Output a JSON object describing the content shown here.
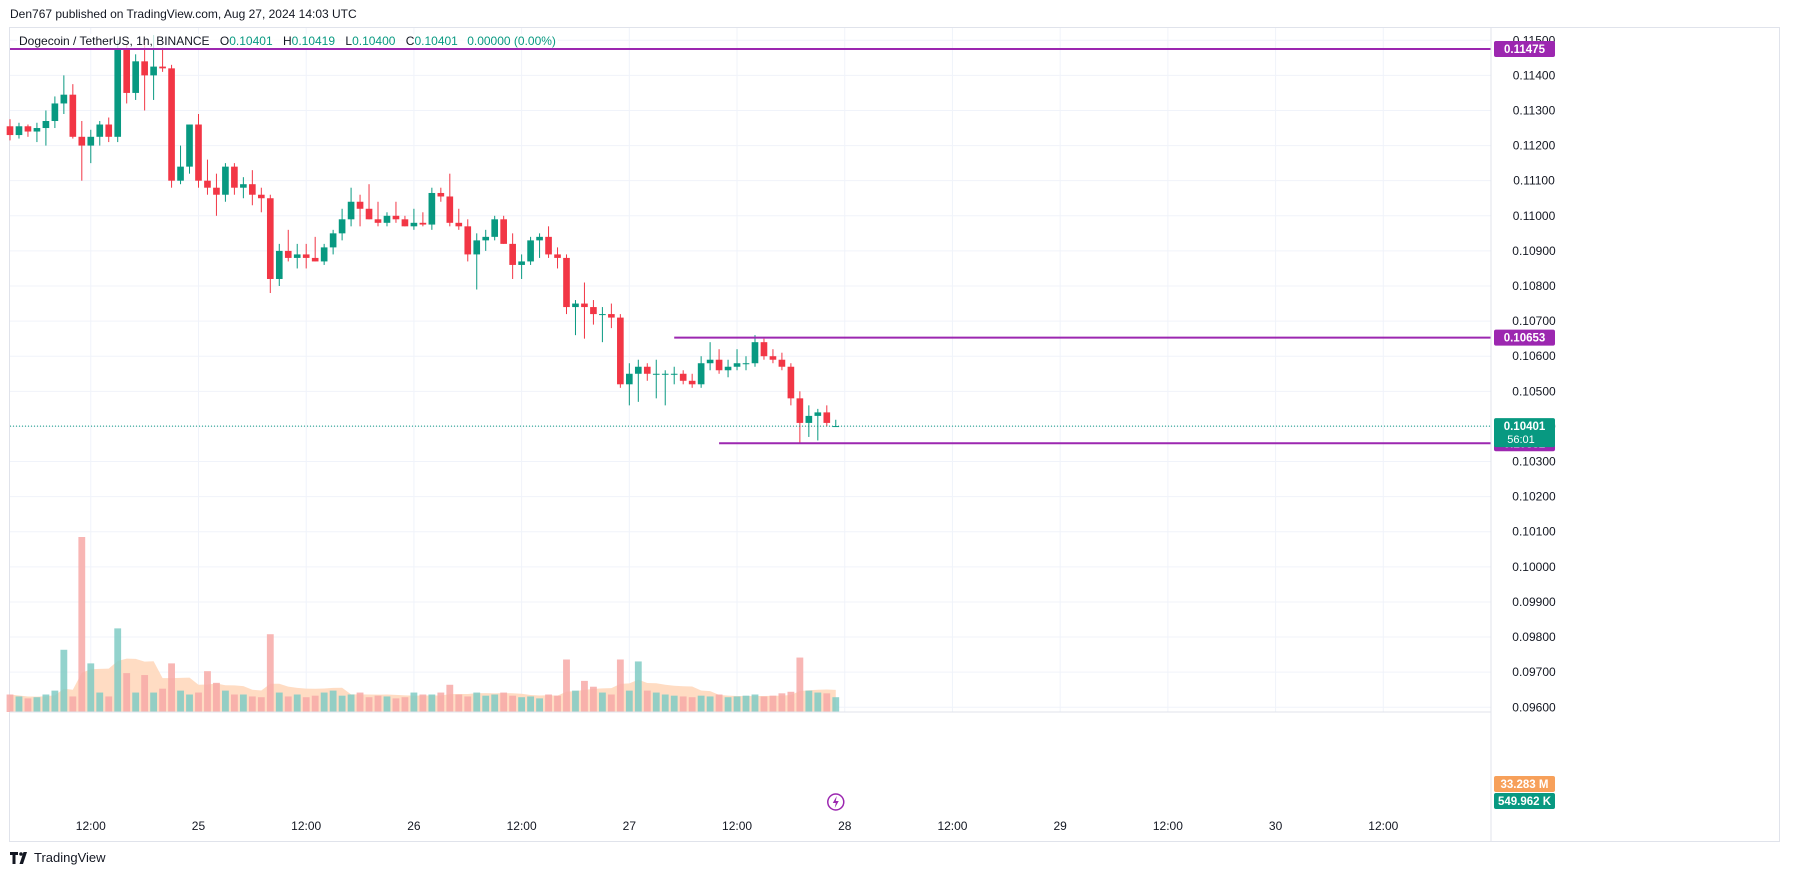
{
  "header": {
    "published": "Den767 published on TradingView.com, Aug 27, 2024 14:03 UTC"
  },
  "legend": {
    "symbol": "Dogecoin / TetherUS, 1h, BINANCE",
    "o_label": "O",
    "o": "0.10401",
    "h_label": "H",
    "h": "0.10419",
    "l_label": "L",
    "l": "0.10400",
    "c_label": "C",
    "c": "0.10401",
    "change": "0.00000 (0.00%)"
  },
  "footer": {
    "logo_text": "TradingView"
  },
  "colors": {
    "up": "#089981",
    "down": "#f23645",
    "level_line": "#9c27b0",
    "vol_up": "#80cbc4",
    "vol_down": "#f7a9a7",
    "vol_ma_fill": "#ffd8bc",
    "grid": "#f0f3fa",
    "price_line": "#089981"
  },
  "chart_data": {
    "type": "candlestick",
    "interval": "1h",
    "y_axis": {
      "ylim": [
        0.09615,
        0.11515
      ],
      "ticks": [
        "0.11500",
        "0.11400",
        "0.11300",
        "0.11200",
        "0.11100",
        "0.11000",
        "0.10900",
        "0.10800",
        "0.10700",
        "0.10600",
        "0.10500",
        "0.10400",
        "0.10300",
        "0.10200",
        "0.10100",
        "0.10000",
        "0.09900",
        "0.09800",
        "0.09700",
        "0.09600"
      ]
    },
    "x_axis": {
      "start": "2024-08-24 03:00",
      "end": "2024-08-31 00:00",
      "ticks": [
        {
          "label": "12:00",
          "time": "2024-08-24 12:00"
        },
        {
          "label": "25",
          "time": "2024-08-25 00:00"
        },
        {
          "label": "12:00",
          "time": "2024-08-25 12:00"
        },
        {
          "label": "26",
          "time": "2024-08-26 00:00"
        },
        {
          "label": "12:00",
          "time": "2024-08-26 12:00"
        },
        {
          "label": "27",
          "time": "2024-08-27 00:00"
        },
        {
          "label": "12:00",
          "time": "2024-08-27 12:00"
        },
        {
          "label": "28",
          "time": "2024-08-28 00:00"
        },
        {
          "label": "12:00",
          "time": "2024-08-28 12:00"
        },
        {
          "label": "29",
          "time": "2024-08-29 00:00"
        },
        {
          "label": "12:00",
          "time": "2024-08-29 12:00"
        },
        {
          "label": "30",
          "time": "2024-08-30 00:00"
        },
        {
          "label": "12:00",
          "time": "2024-08-30 12:00"
        }
      ]
    },
    "first_candle_time": "2024-08-24 03:00",
    "ohlc": [
      [
        0.11255,
        0.11275,
        0.11215,
        0.1123
      ],
      [
        0.1123,
        0.11265,
        0.1122,
        0.11255
      ],
      [
        0.11255,
        0.1126,
        0.11225,
        0.1124
      ],
      [
        0.1124,
        0.11265,
        0.1121,
        0.1125
      ],
      [
        0.1125,
        0.113,
        0.112,
        0.1127
      ],
      [
        0.1127,
        0.1134,
        0.1125,
        0.1132
      ],
      [
        0.1132,
        0.114,
        0.1129,
        0.11345
      ],
      [
        0.11345,
        0.11375,
        0.1122,
        0.11225
      ],
      [
        0.11225,
        0.1127,
        0.111,
        0.112
      ],
      [
        0.112,
        0.11245,
        0.1115,
        0.11225
      ],
      [
        0.11225,
        0.1127,
        0.112,
        0.1126
      ],
      [
        0.1126,
        0.1128,
        0.1121,
        0.11225
      ],
      [
        0.11225,
        0.115,
        0.1121,
        0.11475
      ],
      [
        0.11475,
        0.1149,
        0.1132,
        0.1135
      ],
      [
        0.1135,
        0.1146,
        0.1133,
        0.1144
      ],
      [
        0.1144,
        0.115,
        0.113,
        0.114
      ],
      [
        0.114,
        0.11515,
        0.1133,
        0.11425
      ],
      [
        0.11425,
        0.1148,
        0.1141,
        0.1142
      ],
      [
        0.1142,
        0.1143,
        0.1108,
        0.111
      ],
      [
        0.111,
        0.112,
        0.1109,
        0.1114
      ],
      [
        0.1114,
        0.1126,
        0.1112,
        0.1126
      ],
      [
        0.1126,
        0.1129,
        0.1108,
        0.111
      ],
      [
        0.111,
        0.1116,
        0.1106,
        0.1108
      ],
      [
        0.1108,
        0.1112,
        0.11,
        0.1106
      ],
      [
        0.1106,
        0.1115,
        0.1104,
        0.1114
      ],
      [
        0.1114,
        0.1115,
        0.1106,
        0.1108
      ],
      [
        0.1108,
        0.1111,
        0.1105,
        0.1109
      ],
      [
        0.1109,
        0.1113,
        0.1103,
        0.1106
      ],
      [
        0.1106,
        0.1108,
        0.1101,
        0.1105
      ],
      [
        0.1105,
        0.1106,
        0.1078,
        0.1082
      ],
      [
        0.1082,
        0.1092,
        0.108,
        0.109
      ],
      [
        0.109,
        0.1096,
        0.1087,
        0.1088
      ],
      [
        0.1088,
        0.1092,
        0.1085,
        0.1089
      ],
      [
        0.1089,
        0.1092,
        0.1085,
        0.1088
      ],
      [
        0.1088,
        0.1094,
        0.1087,
        0.1087
      ],
      [
        0.1087,
        0.1092,
        0.1086,
        0.1091
      ],
      [
        0.1091,
        0.1096,
        0.1089,
        0.1095
      ],
      [
        0.1095,
        0.1102,
        0.1093,
        0.1099
      ],
      [
        0.1099,
        0.1108,
        0.1097,
        0.1104
      ],
      [
        0.1104,
        0.1106,
        0.1097,
        0.1102
      ],
      [
        0.1102,
        0.1109,
        0.1099,
        0.1099
      ],
      [
        0.1099,
        0.1104,
        0.1097,
        0.1098
      ],
      [
        0.1098,
        0.1101,
        0.1097,
        0.11
      ],
      [
        0.11,
        0.1104,
        0.1098,
        0.1099
      ],
      [
        0.1099,
        0.11,
        0.1097,
        0.1097
      ],
      [
        0.1097,
        0.1102,
        0.1096,
        0.1098
      ],
      [
        0.1098,
        0.1101,
        0.1097,
        0.10975
      ],
      [
        0.10975,
        0.1108,
        0.1096,
        0.11065
      ],
      [
        0.11065,
        0.1108,
        0.1104,
        0.11055
      ],
      [
        0.11055,
        0.1112,
        0.1097,
        0.1098
      ],
      [
        0.1098,
        0.1102,
        0.1096,
        0.1097
      ],
      [
        0.1097,
        0.1099,
        0.1087,
        0.1089
      ],
      [
        0.1089,
        0.1095,
        0.1079,
        0.1093
      ],
      [
        0.1093,
        0.1096,
        0.109,
        0.1094
      ],
      [
        0.1094,
        0.11,
        0.1093,
        0.1099
      ],
      [
        0.1099,
        0.11,
        0.1092,
        0.1092
      ],
      [
        0.1092,
        0.1095,
        0.1082,
        0.1086
      ],
      [
        0.1086,
        0.1089,
        0.1082,
        0.1087
      ],
      [
        0.1087,
        0.1094,
        0.1086,
        0.1093
      ],
      [
        0.1093,
        0.1095,
        0.1088,
        0.1094
      ],
      [
        0.1094,
        0.1097,
        0.1088,
        0.1089
      ],
      [
        0.1089,
        0.1091,
        0.1085,
        0.1088
      ],
      [
        0.1088,
        0.1089,
        0.1072,
        0.1074
      ],
      [
        0.1074,
        0.1076,
        0.1066,
        0.1075
      ],
      [
        0.1075,
        0.1081,
        0.1065,
        0.1074
      ],
      [
        0.1074,
        0.1076,
        0.1069,
        0.1072
      ],
      [
        0.1072,
        0.1074,
        0.1064,
        0.1072
      ],
      [
        0.1072,
        0.1075,
        0.1068,
        0.1071
      ],
      [
        0.1071,
        0.1072,
        0.1051,
        0.1052
      ],
      [
        0.1052,
        0.1058,
        0.1046,
        0.1055
      ],
      [
        0.1055,
        0.1059,
        0.1047,
        0.1057
      ],
      [
        0.1057,
        0.1058,
        0.1053,
        0.1055
      ],
      [
        0.1055,
        0.1059,
        0.1048,
        0.1055
      ],
      [
        0.1055,
        0.1056,
        0.1046,
        0.1055
      ],
      [
        0.1055,
        0.1057,
        0.1052,
        0.1055
      ],
      [
        0.1055,
        0.1056,
        0.1052,
        0.1053
      ],
      [
        0.1053,
        0.1055,
        0.1051,
        0.1052
      ],
      [
        0.1052,
        0.106,
        0.1051,
        0.1058
      ],
      [
        0.1058,
        0.1064,
        0.1056,
        0.1059
      ],
      [
        0.1059,
        0.1062,
        0.1055,
        0.1056
      ],
      [
        0.1056,
        0.1059,
        0.1054,
        0.1057
      ],
      [
        0.1057,
        0.1062,
        0.1056,
        0.1058
      ],
      [
        0.1058,
        0.106,
        0.1056,
        0.1058
      ],
      [
        0.1058,
        0.1066,
        0.1057,
        0.1064
      ],
      [
        0.1064,
        0.1065,
        0.1059,
        0.106
      ],
      [
        0.106,
        0.1062,
        0.1058,
        0.1059
      ],
      [
        0.1059,
        0.1061,
        0.1056,
        0.1057
      ],
      [
        0.1057,
        0.1058,
        0.1046,
        0.1048
      ],
      [
        0.1048,
        0.105,
        0.10352,
        0.1041
      ],
      [
        0.1041,
        0.1046,
        0.1037,
        0.1043
      ],
      [
        0.1043,
        0.1045,
        0.1036,
        0.1044
      ],
      [
        0.1044,
        0.1046,
        0.104,
        0.1041
      ],
      [
        0.10401,
        0.10419,
        0.104,
        0.10401
      ]
    ],
    "volume_up_color_key": "vol_up",
    "volume": [
      0.45,
      0.4,
      0.35,
      0.38,
      0.45,
      0.55,
      1.6,
      0.4,
      4.5,
      1.25,
      0.5,
      0.4,
      2.15,
      1.0,
      0.5,
      0.95,
      0.5,
      0.6,
      1.25,
      0.55,
      0.45,
      0.5,
      1.05,
      0.75,
      0.55,
      0.45,
      0.45,
      0.4,
      0.38,
      2.0,
      0.5,
      0.4,
      0.45,
      0.38,
      0.42,
      0.5,
      0.55,
      0.42,
      0.45,
      0.5,
      0.38,
      0.42,
      0.4,
      0.35,
      0.38,
      0.5,
      0.45,
      0.45,
      0.5,
      0.7,
      0.45,
      0.4,
      0.5,
      0.42,
      0.45,
      0.5,
      0.42,
      0.38,
      0.4,
      0.35,
      0.45,
      0.42,
      1.35,
      0.55,
      0.8,
      0.65,
      0.5,
      0.45,
      1.35,
      0.55,
      1.3,
      0.55,
      0.5,
      0.45,
      0.42,
      0.4,
      0.38,
      0.42,
      0.4,
      0.45,
      0.38,
      0.4,
      0.42,
      0.45,
      0.4,
      0.42,
      0.48,
      0.52,
      1.4,
      0.55,
      0.5,
      0.48,
      0.38
    ],
    "volume_max": 4.5,
    "current_price": {
      "value": 0.10401,
      "label": "0.10401",
      "countdown": "56:01"
    },
    "levels": [
      {
        "value": 0.11475,
        "label": "0.11475",
        "start": "full"
      },
      {
        "value": 0.10653,
        "label": "0.10653",
        "start": "2024-08-27 05:00"
      },
      {
        "value": 0.10352,
        "label": "0.10352",
        "start": "2024-08-27 10:00"
      }
    ],
    "volume_badges": [
      {
        "label": "33.283 M",
        "color": "#f7a05a"
      },
      {
        "label": "549.962 K",
        "color": "#089981"
      }
    ]
  }
}
